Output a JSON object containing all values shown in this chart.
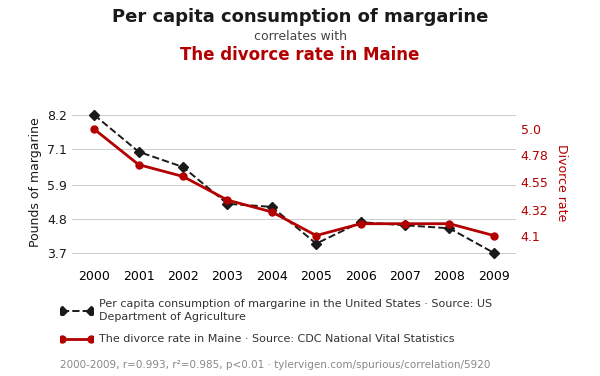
{
  "years": [
    2000,
    2001,
    2002,
    2003,
    2004,
    2005,
    2006,
    2007,
    2008,
    2009
  ],
  "margarine": [
    8.2,
    7.0,
    6.5,
    5.3,
    5.2,
    4.0,
    4.7,
    4.6,
    4.5,
    3.7
  ],
  "divorce": [
    5.0,
    4.7,
    4.6,
    4.4,
    4.3,
    4.1,
    4.2,
    4.2,
    4.2,
    4.1
  ],
  "title1": "Per capita consumption of margarine",
  "title2": "correlates with",
  "title3": "The divorce rate in Maine",
  "ylabel_left": "Pounds of margarine",
  "ylabel_right": "Divorce rate",
  "yticks_left": [
    3.7,
    4.8,
    5.9,
    7.1,
    8.2
  ],
  "yticks_right": [
    4.1,
    4.32,
    4.55,
    4.78,
    5.0
  ],
  "ylim_left": [
    3.3,
    8.7
  ],
  "ylim_right": [
    3.85,
    5.25
  ],
  "legend1": "Per capita consumption of margarine in the United States · Source: US\nDepartment of Agriculture",
  "legend2": "The divorce rate in Maine · Source: CDC National Vital Statistics",
  "footnote": "2000-2009, r=0.993, r²=0.985, p<0.01 · tylervigen.com/spurious/correlation/5920",
  "color_margarine": "#1a1a1a",
  "color_divorce": "#b30000",
  "color_title3": "#b30000",
  "color_footnote": "#888888",
  "background": "#ffffff"
}
